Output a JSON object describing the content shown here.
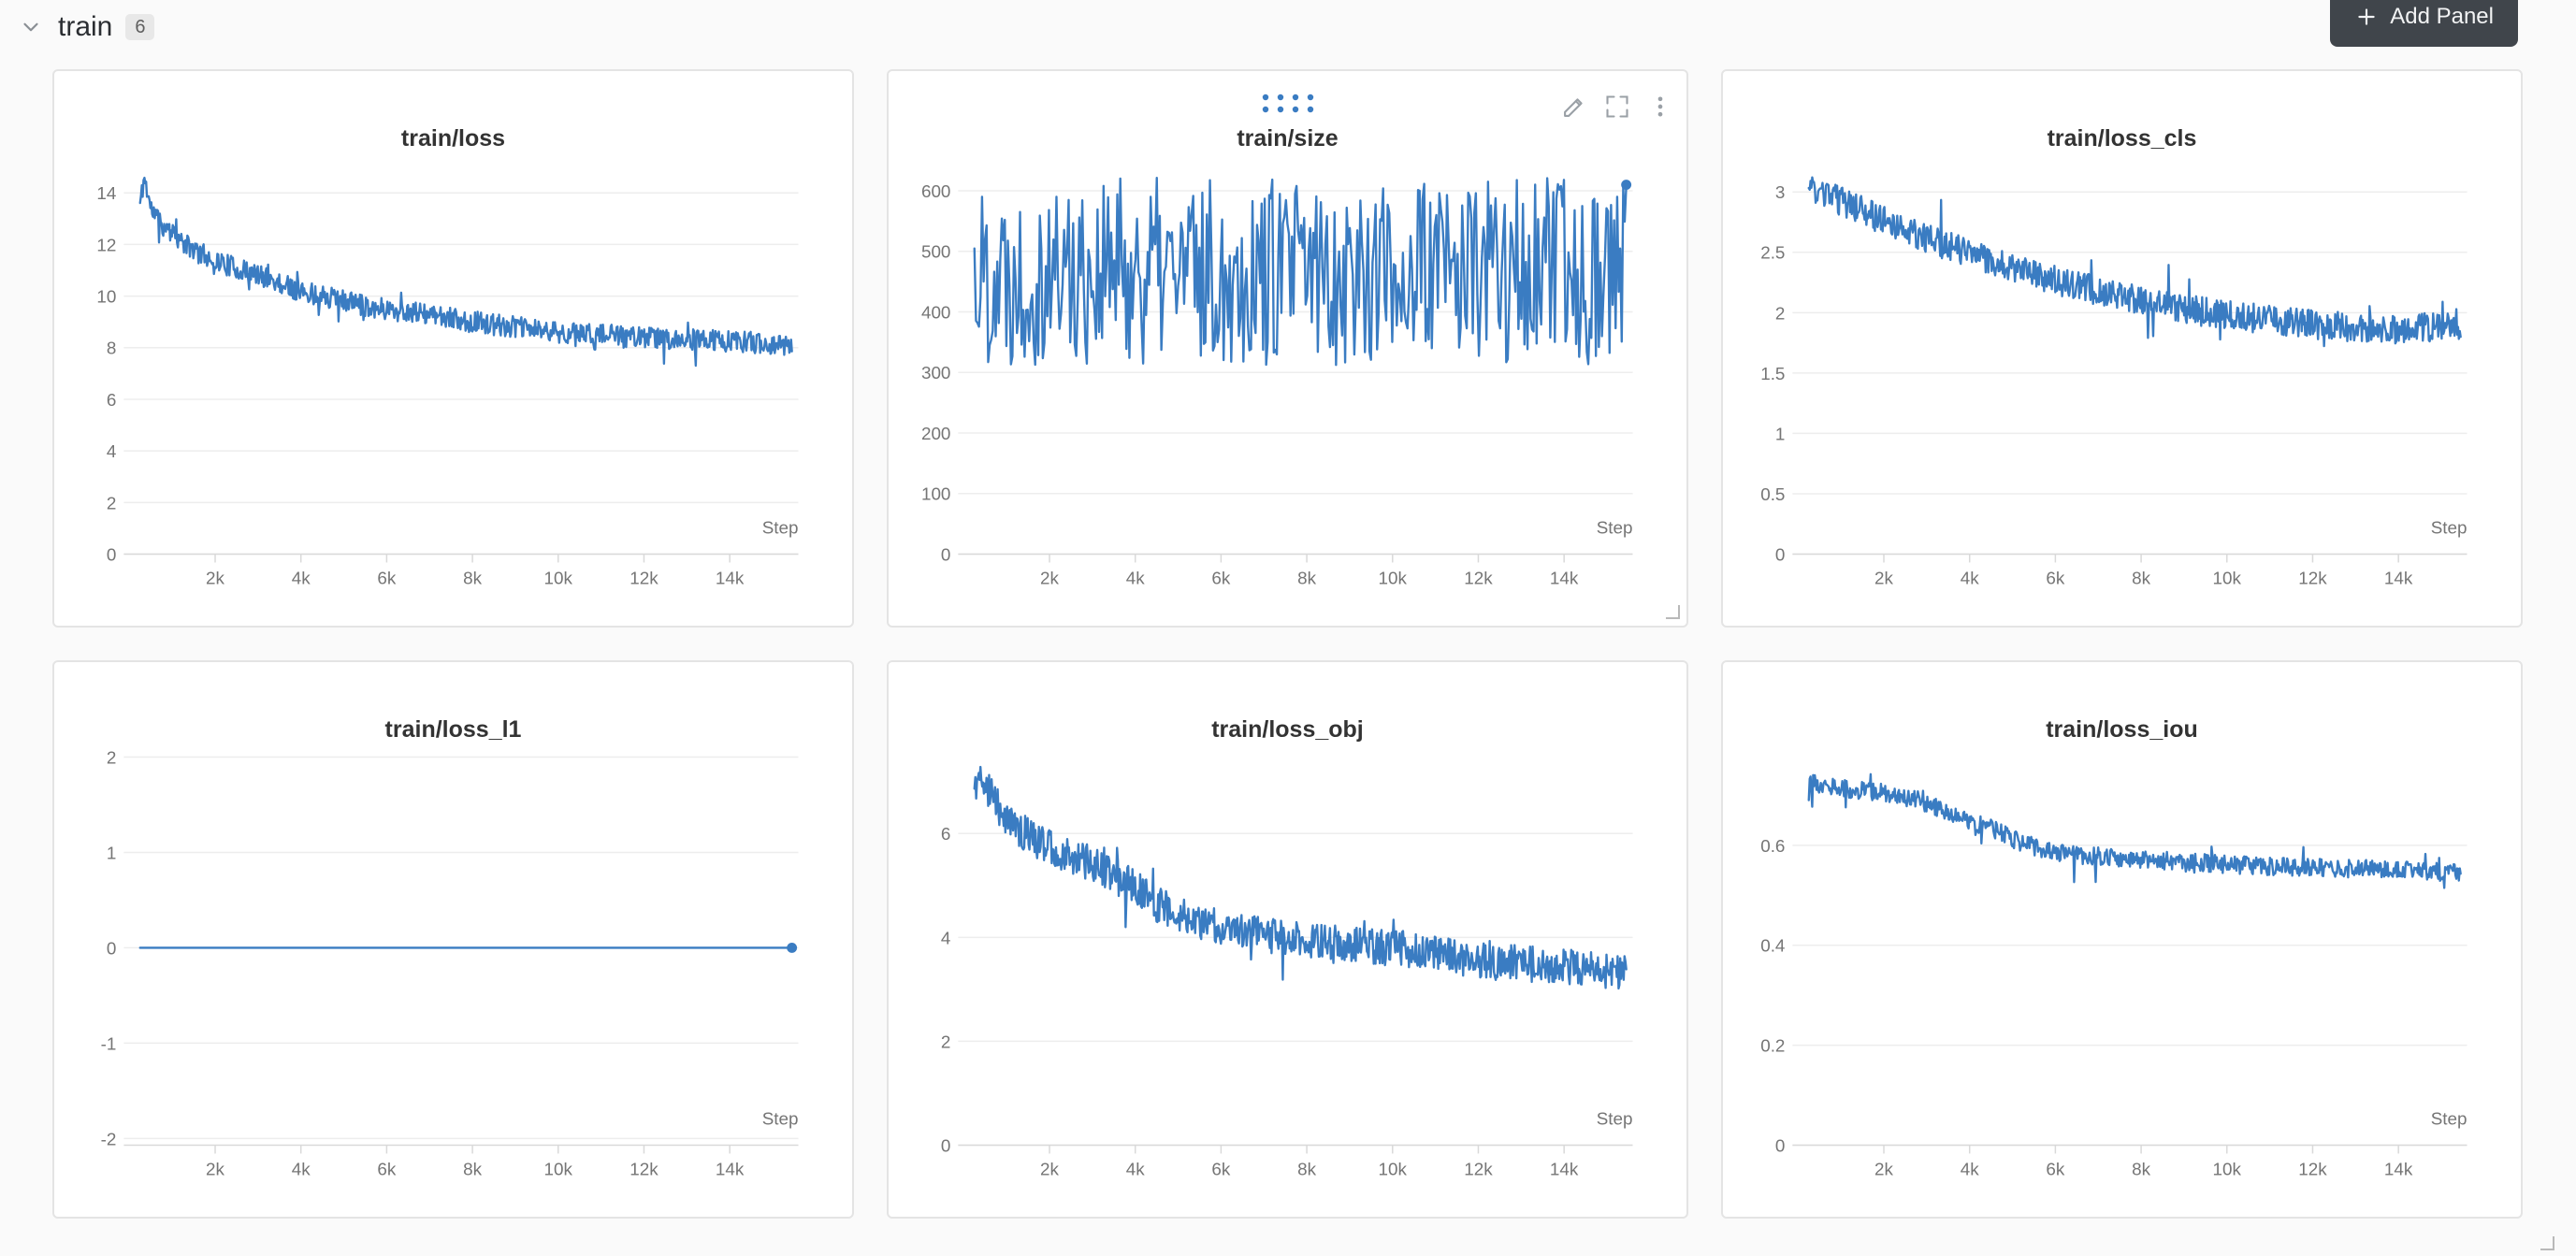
{
  "colors": {
    "accent": "#3a7cc2",
    "page_bg": "#fafafa",
    "panel_border": "#e4e4e4",
    "grid_line": "#ededed",
    "axis_line": "#d9d9d9",
    "tick_text": "#757575",
    "title_text": "#333333",
    "button_bg": "#40454b",
    "button_text": "#f2f3f4"
  },
  "header": {
    "section_title": "train",
    "panel_count": "6",
    "add_panel_label": "Add Panel",
    "icons": [
      "chevron-down-icon",
      "plus-icon"
    ]
  },
  "panel_icons": [
    "drag-handle-icon",
    "edit-pencil-icon",
    "fullscreen-icon",
    "kebab-menu-icon",
    "resize-handle-icon"
  ],
  "chart_data": [
    {
      "type": "line",
      "title": "train/loss",
      "xlabel": "Step",
      "xlim": [
        0,
        15600
      ],
      "ylim": [
        0,
        15.3
      ],
      "xticks": [
        {
          "v": 2000,
          "label": "2k"
        },
        {
          "v": 4000,
          "label": "4k"
        },
        {
          "v": 6000,
          "label": "6k"
        },
        {
          "v": 8000,
          "label": "8k"
        },
        {
          "v": 10000,
          "label": "10k"
        },
        {
          "v": 12000,
          "label": "12k"
        },
        {
          "v": 14000,
          "label": "14k"
        }
      ],
      "yticks": [
        {
          "v": 0,
          "label": "0"
        },
        {
          "v": 2,
          "label": "2"
        },
        {
          "v": 4,
          "label": "4"
        },
        {
          "v": 6,
          "label": "6"
        },
        {
          "v": 8,
          "label": "8"
        },
        {
          "v": 10,
          "label": "10"
        },
        {
          "v": 12,
          "label": "12"
        },
        {
          "v": 14,
          "label": "14"
        }
      ],
      "series": {
        "mode": "trend",
        "x_start": 250,
        "x_end": 15450,
        "n": 760,
        "seed": 11,
        "noise": 0.42,
        "trend": [
          [
            250,
            13.6
          ],
          [
            350,
            14.6
          ],
          [
            500,
            13.4
          ],
          [
            800,
            12.7
          ],
          [
            1200,
            12.1
          ],
          [
            1600,
            11.7
          ],
          [
            2000,
            11.4
          ],
          [
            2600,
            11.0
          ],
          [
            3200,
            10.7
          ],
          [
            4000,
            10.2
          ],
          [
            4800,
            9.9
          ],
          [
            5600,
            9.6
          ],
          [
            6400,
            9.4
          ],
          [
            7200,
            9.2
          ],
          [
            8000,
            9.0
          ],
          [
            9000,
            8.8
          ],
          [
            10000,
            8.6
          ],
          [
            11000,
            8.5
          ],
          [
            12000,
            8.4
          ],
          [
            13000,
            8.3
          ],
          [
            14000,
            8.25
          ],
          [
            15450,
            8.1
          ]
        ]
      },
      "end_dot": {
        "show": false,
        "value": 0
      },
      "controls": {
        "hover": false,
        "resize": false
      }
    },
    {
      "type": "line",
      "title": "train/size",
      "xlabel": "Step",
      "xlim": [
        0,
        15600
      ],
      "ylim": [
        0,
        652
      ],
      "xticks": [
        {
          "v": 2000,
          "label": "2k"
        },
        {
          "v": 4000,
          "label": "4k"
        },
        {
          "v": 6000,
          "label": "6k"
        },
        {
          "v": 8000,
          "label": "8k"
        },
        {
          "v": 10000,
          "label": "10k"
        },
        {
          "v": 12000,
          "label": "12k"
        },
        {
          "v": 14000,
          "label": "14k"
        }
      ],
      "yticks": [
        {
          "v": 0,
          "label": "0"
        },
        {
          "v": 100,
          "label": "100"
        },
        {
          "v": 200,
          "label": "200"
        },
        {
          "v": 300,
          "label": "300"
        },
        {
          "v": 400,
          "label": "400"
        },
        {
          "v": 500,
          "label": "500"
        },
        {
          "v": 600,
          "label": "600"
        }
      ],
      "series": {
        "mode": "band",
        "x_start": 250,
        "x_end": 15450,
        "n": 430,
        "seed": 22,
        "lo": 312,
        "hi": 622
      },
      "end_dot": {
        "show": true,
        "value": 610
      },
      "controls": {
        "hover": true,
        "resize": true
      }
    },
    {
      "type": "line",
      "title": "train/loss_cls",
      "xlabel": "Step",
      "xlim": [
        0,
        15600
      ],
      "ylim": [
        0,
        3.27
      ],
      "xticks": [
        {
          "v": 2000,
          "label": "2k"
        },
        {
          "v": 4000,
          "label": "4k"
        },
        {
          "v": 6000,
          "label": "6k"
        },
        {
          "v": 8000,
          "label": "8k"
        },
        {
          "v": 10000,
          "label": "10k"
        },
        {
          "v": 12000,
          "label": "12k"
        },
        {
          "v": 14000,
          "label": "14k"
        }
      ],
      "yticks": [
        {
          "v": 0,
          "label": "0"
        },
        {
          "v": 0.5,
          "label": "0.5"
        },
        {
          "v": 1,
          "label": "1"
        },
        {
          "v": 1.5,
          "label": "1.5"
        },
        {
          "v": 2,
          "label": "2"
        },
        {
          "v": 2.5,
          "label": "2.5"
        },
        {
          "v": 3,
          "label": "3"
        }
      ],
      "series": {
        "mode": "trend",
        "x_start": 250,
        "x_end": 15450,
        "n": 760,
        "seed": 33,
        "noise": 0.12,
        "trend": [
          [
            250,
            3.02
          ],
          [
            800,
            2.95
          ],
          [
            1500,
            2.85
          ],
          [
            2200,
            2.72
          ],
          [
            3000,
            2.62
          ],
          [
            3800,
            2.52
          ],
          [
            4600,
            2.42
          ],
          [
            5400,
            2.32
          ],
          [
            6200,
            2.25
          ],
          [
            7000,
            2.18
          ],
          [
            8000,
            2.1
          ],
          [
            9000,
            2.03
          ],
          [
            10000,
            1.98
          ],
          [
            11000,
            1.94
          ],
          [
            12000,
            1.9
          ],
          [
            13000,
            1.88
          ],
          [
            14000,
            1.86
          ],
          [
            15450,
            1.9
          ]
        ]
      },
      "end_dot": {
        "show": false,
        "value": 0
      },
      "controls": {
        "hover": false,
        "resize": false
      }
    },
    {
      "type": "line",
      "title": "train/loss_l1",
      "xlabel": "Step",
      "xlim": [
        0,
        15600
      ],
      "ylim": [
        -2.07,
        2.07
      ],
      "xticks": [
        {
          "v": 2000,
          "label": "2k"
        },
        {
          "v": 4000,
          "label": "4k"
        },
        {
          "v": 6000,
          "label": "6k"
        },
        {
          "v": 8000,
          "label": "8k"
        },
        {
          "v": 10000,
          "label": "10k"
        },
        {
          "v": 12000,
          "label": "12k"
        },
        {
          "v": 14000,
          "label": "14k"
        }
      ],
      "yticks": [
        {
          "v": -2,
          "label": "-2"
        },
        {
          "v": -1,
          "label": "-1"
        },
        {
          "v": 0,
          "label": "0"
        },
        {
          "v": 1,
          "label": "1"
        },
        {
          "v": 2,
          "label": "2"
        }
      ],
      "series": {
        "mode": "trend",
        "x_start": 250,
        "x_end": 15450,
        "n": 200,
        "seed": 44,
        "noise": 0,
        "trend": [
          [
            250,
            0
          ],
          [
            15450,
            0
          ]
        ]
      },
      "end_dot": {
        "show": true,
        "value": 0
      },
      "controls": {
        "hover": false,
        "resize": false
      }
    },
    {
      "type": "line",
      "title": "train/loss_obj",
      "xlabel": "Step",
      "xlim": [
        0,
        15600
      ],
      "ylim": [
        0,
        7.6
      ],
      "xticks": [
        {
          "v": 2000,
          "label": "2k"
        },
        {
          "v": 4000,
          "label": "4k"
        },
        {
          "v": 6000,
          "label": "6k"
        },
        {
          "v": 8000,
          "label": "8k"
        },
        {
          "v": 10000,
          "label": "10k"
        },
        {
          "v": 12000,
          "label": "12k"
        },
        {
          "v": 14000,
          "label": "14k"
        }
      ],
      "yticks": [
        {
          "v": 0,
          "label": "0"
        },
        {
          "v": 2,
          "label": "2"
        },
        {
          "v": 4,
          "label": "4"
        },
        {
          "v": 6,
          "label": "6"
        }
      ],
      "series": {
        "mode": "trend",
        "x_start": 250,
        "x_end": 15450,
        "n": 760,
        "seed": 55,
        "noise": 0.35,
        "trend": [
          [
            250,
            6.9
          ],
          [
            400,
            7.2
          ],
          [
            700,
            6.6
          ],
          [
            1100,
            6.2
          ],
          [
            1600,
            5.9
          ],
          [
            2100,
            5.7
          ],
          [
            2700,
            5.5
          ],
          [
            3300,
            5.3
          ],
          [
            3900,
            5.0
          ],
          [
            4400,
            4.7
          ],
          [
            4900,
            4.45
          ],
          [
            5500,
            4.3
          ],
          [
            6200,
            4.2
          ],
          [
            7000,
            4.05
          ],
          [
            8000,
            3.95
          ],
          [
            9000,
            3.85
          ],
          [
            10000,
            3.8
          ],
          [
            11000,
            3.7
          ],
          [
            12000,
            3.55
          ],
          [
            13000,
            3.5
          ],
          [
            14000,
            3.45
          ],
          [
            15450,
            3.3
          ]
        ]
      },
      "end_dot": {
        "show": false,
        "value": 0
      },
      "controls": {
        "hover": false,
        "resize": false
      }
    },
    {
      "type": "line",
      "title": "train/loss_iou",
      "xlabel": "Step",
      "xlim": [
        0,
        15600
      ],
      "ylim": [
        0,
        0.79
      ],
      "xticks": [
        {
          "v": 2000,
          "label": "2k"
        },
        {
          "v": 4000,
          "label": "4k"
        },
        {
          "v": 6000,
          "label": "6k"
        },
        {
          "v": 8000,
          "label": "8k"
        },
        {
          "v": 10000,
          "label": "10k"
        },
        {
          "v": 12000,
          "label": "12k"
        },
        {
          "v": 14000,
          "label": "14k"
        }
      ],
      "yticks": [
        {
          "v": 0,
          "label": "0"
        },
        {
          "v": 0.2,
          "label": "0.2"
        },
        {
          "v": 0.4,
          "label": "0.4"
        },
        {
          "v": 0.6,
          "label": "0.6"
        }
      ],
      "series": {
        "mode": "trend",
        "x_start": 250,
        "x_end": 15450,
        "n": 760,
        "seed": 66,
        "noise": 0.018,
        "trend": [
          [
            250,
            0.725
          ],
          [
            1000,
            0.715
          ],
          [
            2000,
            0.705
          ],
          [
            2800,
            0.69
          ],
          [
            3400,
            0.67
          ],
          [
            4000,
            0.65
          ],
          [
            4600,
            0.63
          ],
          [
            5200,
            0.605
          ],
          [
            5800,
            0.59
          ],
          [
            6400,
            0.582
          ],
          [
            7200,
            0.577
          ],
          [
            8000,
            0.572
          ],
          [
            9000,
            0.567
          ],
          [
            10000,
            0.562
          ],
          [
            11000,
            0.558
          ],
          [
            12000,
            0.556
          ],
          [
            13000,
            0.553
          ],
          [
            14000,
            0.551
          ],
          [
            15450,
            0.545
          ]
        ]
      },
      "end_dot": {
        "show": false,
        "value": 0
      },
      "controls": {
        "hover": false,
        "resize": false
      }
    }
  ]
}
